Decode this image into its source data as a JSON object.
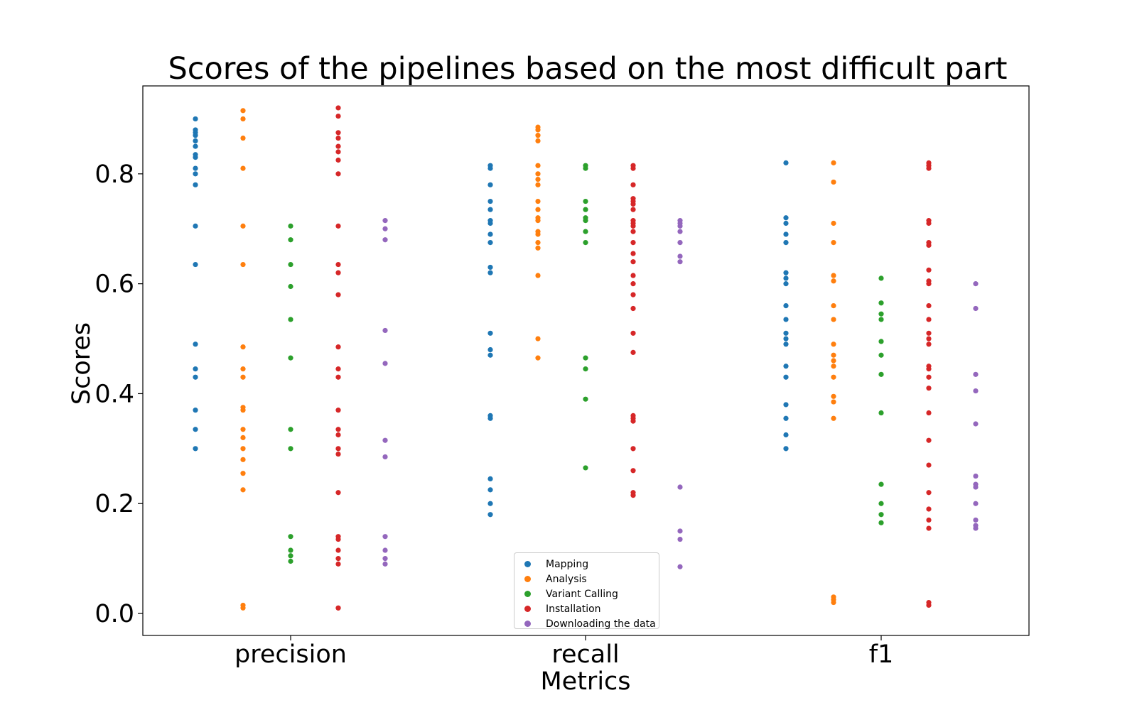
{
  "chart_data": {
    "type": "scatter",
    "title": "Scores of the pipelines based on the most difficult part",
    "xlabel": "Metrics",
    "ylabel": "Scores",
    "categories": [
      "precision",
      "recall",
      "f1"
    ],
    "ylim": [
      -0.04,
      0.96
    ],
    "yticks": [
      "0.0",
      "0.2",
      "0.4",
      "0.6",
      "0.8"
    ],
    "legend_position": "lower-center",
    "series": [
      {
        "name": "Mapping",
        "color": "#1f77b4",
        "values": [
          [
            0.3,
            0.335,
            0.37,
            0.43,
            0.445,
            0.49,
            0.635,
            0.705,
            0.78,
            0.8,
            0.81,
            0.83,
            0.835,
            0.85,
            0.86,
            0.87,
            0.875,
            0.88,
            0.9
          ],
          [
            0.18,
            0.2,
            0.225,
            0.245,
            0.355,
            0.36,
            0.47,
            0.48,
            0.51,
            0.62,
            0.63,
            0.675,
            0.69,
            0.71,
            0.715,
            0.735,
            0.75,
            0.78,
            0.81,
            0.815
          ],
          [
            0.3,
            0.325,
            0.355,
            0.38,
            0.43,
            0.45,
            0.49,
            0.5,
            0.51,
            0.535,
            0.56,
            0.6,
            0.61,
            0.62,
            0.675,
            0.69,
            0.71,
            0.72,
            0.82
          ]
        ]
      },
      {
        "name": "Analysis",
        "color": "#ff7f0e",
        "values": [
          [
            0.01,
            0.015,
            0.225,
            0.255,
            0.28,
            0.3,
            0.32,
            0.335,
            0.37,
            0.375,
            0.43,
            0.445,
            0.485,
            0.635,
            0.705,
            0.81,
            0.865,
            0.9,
            0.915
          ],
          [
            0.465,
            0.5,
            0.615,
            0.665,
            0.675,
            0.69,
            0.695,
            0.715,
            0.72,
            0.735,
            0.75,
            0.78,
            0.79,
            0.8,
            0.815,
            0.86,
            0.87,
            0.88,
            0.885
          ],
          [
            0.02,
            0.025,
            0.03,
            0.355,
            0.385,
            0.395,
            0.43,
            0.45,
            0.46,
            0.47,
            0.49,
            0.535,
            0.56,
            0.605,
            0.615,
            0.675,
            0.71,
            0.785,
            0.82
          ]
        ]
      },
      {
        "name": "Variant Calling",
        "color": "#2ca02c",
        "values": [
          [
            0.095,
            0.105,
            0.115,
            0.14,
            0.3,
            0.335,
            0.465,
            0.535,
            0.595,
            0.635,
            0.68,
            0.705
          ],
          [
            0.265,
            0.39,
            0.445,
            0.465,
            0.675,
            0.695,
            0.715,
            0.72,
            0.735,
            0.75,
            0.81,
            0.815
          ],
          [
            0.165,
            0.18,
            0.2,
            0.235,
            0.365,
            0.435,
            0.47,
            0.495,
            0.535,
            0.545,
            0.565,
            0.61
          ]
        ]
      },
      {
        "name": "Installation",
        "color": "#d62728",
        "values": [
          [
            0.01,
            0.01,
            0.09,
            0.1,
            0.115,
            0.135,
            0.14,
            0.22,
            0.29,
            0.3,
            0.325,
            0.335,
            0.37,
            0.43,
            0.445,
            0.485,
            0.58,
            0.62,
            0.635,
            0.705,
            0.8,
            0.825,
            0.84,
            0.85,
            0.865,
            0.875,
            0.905,
            0.92
          ],
          [
            0.215,
            0.22,
            0.26,
            0.3,
            0.35,
            0.355,
            0.36,
            0.475,
            0.51,
            0.555,
            0.58,
            0.6,
            0.615,
            0.64,
            0.655,
            0.675,
            0.695,
            0.705,
            0.71,
            0.715,
            0.735,
            0.745,
            0.75,
            0.755,
            0.78,
            0.81,
            0.815
          ],
          [
            0.015,
            0.02,
            0.155,
            0.17,
            0.19,
            0.22,
            0.27,
            0.315,
            0.365,
            0.41,
            0.43,
            0.445,
            0.45,
            0.49,
            0.5,
            0.51,
            0.535,
            0.56,
            0.6,
            0.605,
            0.625,
            0.67,
            0.675,
            0.71,
            0.715,
            0.81,
            0.815,
            0.82
          ]
        ]
      },
      {
        "name": "Downloading the data",
        "color": "#9467bd",
        "values": [
          [
            0.09,
            0.1,
            0.115,
            0.14,
            0.285,
            0.315,
            0.455,
            0.515,
            0.68,
            0.7,
            0.715
          ],
          [
            0.085,
            0.135,
            0.15,
            0.23,
            0.64,
            0.65,
            0.675,
            0.695,
            0.705,
            0.71,
            0.715
          ],
          [
            0.155,
            0.16,
            0.17,
            0.2,
            0.23,
            0.235,
            0.25,
            0.345,
            0.405,
            0.435,
            0.555,
            0.6
          ]
        ]
      }
    ]
  }
}
